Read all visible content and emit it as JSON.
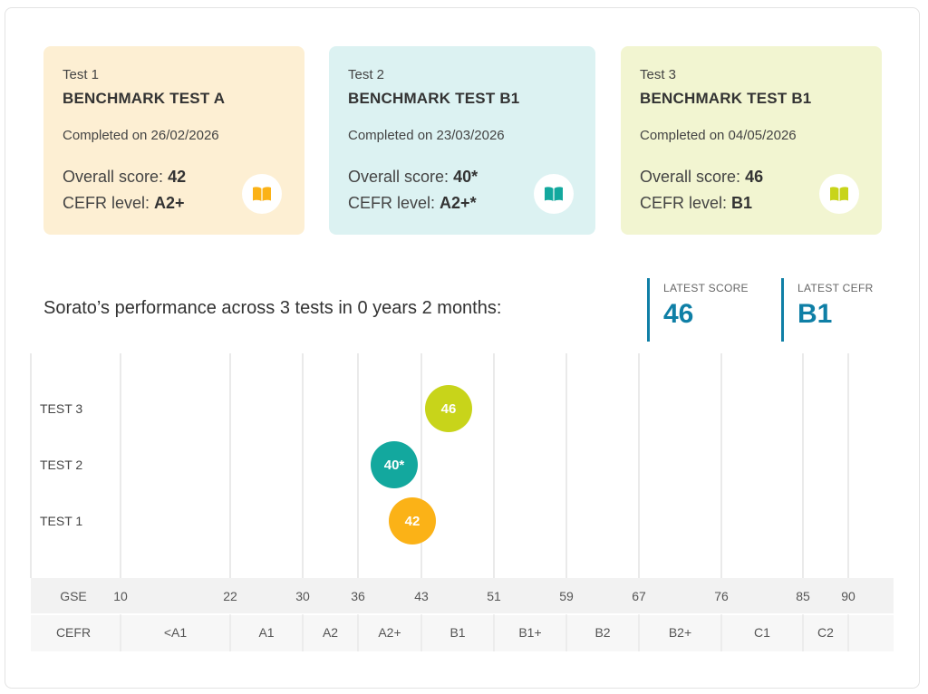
{
  "cards": [
    {
      "label": "Test 1",
      "name": "BENCHMARK TEST A",
      "completed": "Completed on 26/02/2026",
      "score_label": "Overall score:",
      "score": "42",
      "cefr_label": "CEFR level:",
      "cefr": "A2+",
      "bg": "#fdefd3",
      "accent": "#fbb217",
      "icon": "book-icon"
    },
    {
      "label": "Test 2",
      "name": "BENCHMARK TEST B1",
      "completed": "Completed on 23/03/2026",
      "score_label": "Overall score:",
      "score": "40*",
      "cefr_label": "CEFR level:",
      "cefr": "A2+*",
      "bg": "#dcf2f2",
      "accent": "#13a89e",
      "icon": "book-icon"
    },
    {
      "label": "Test 3",
      "name": "BENCHMARK TEST B1",
      "completed": "Completed on 04/05/2026",
      "score_label": "Overall score:",
      "score": "46",
      "cefr_label": "CEFR level:",
      "cefr": "B1",
      "bg": "#f2f5d1",
      "accent": "#c8d41a",
      "icon": "book-icon"
    }
  ],
  "headline": "Sorato’s performance across 3 tests in 0 years 2 months:",
  "latest": {
    "score_caption": "LATEST SCORE",
    "score": "46",
    "cefr_caption": "LATEST CEFR",
    "cefr": "B1",
    "accent": "#0f7fa6"
  },
  "chart_data": {
    "type": "scatter",
    "x_axis": "GSE",
    "xlim": [
      10,
      90
    ],
    "y_categories": [
      "TEST 3",
      "TEST 2",
      "TEST 1"
    ],
    "points": [
      {
        "test": "TEST 3",
        "x": 46,
        "label": "46",
        "color": "#c8d41a"
      },
      {
        "test": "TEST 2",
        "x": 40,
        "label": "40*",
        "color": "#13a89e"
      },
      {
        "test": "TEST 1",
        "x": 42,
        "label": "42",
        "color": "#fbb217"
      }
    ],
    "gse_row_label": "GSE",
    "gse_ticks": [
      10,
      22,
      30,
      36,
      43,
      51,
      59,
      67,
      76,
      85,
      90
    ],
    "cefr_row_label": "CEFR",
    "cefr_bands": [
      {
        "label": "<A1",
        "from": 10,
        "to": 22
      },
      {
        "label": "A1",
        "from": 22,
        "to": 30
      },
      {
        "label": "A2",
        "from": 30,
        "to": 36
      },
      {
        "label": "A2+",
        "from": 36,
        "to": 43
      },
      {
        "label": "B1",
        "from": 43,
        "to": 51
      },
      {
        "label": "B1+",
        "from": 51,
        "to": 59
      },
      {
        "label": "B2",
        "from": 59,
        "to": 67
      },
      {
        "label": "B2+",
        "from": 67,
        "to": 76
      },
      {
        "label": "C1",
        "from": 76,
        "to": 85
      },
      {
        "label": "C2",
        "from": 85,
        "to": 90
      }
    ],
    "grid": true
  }
}
